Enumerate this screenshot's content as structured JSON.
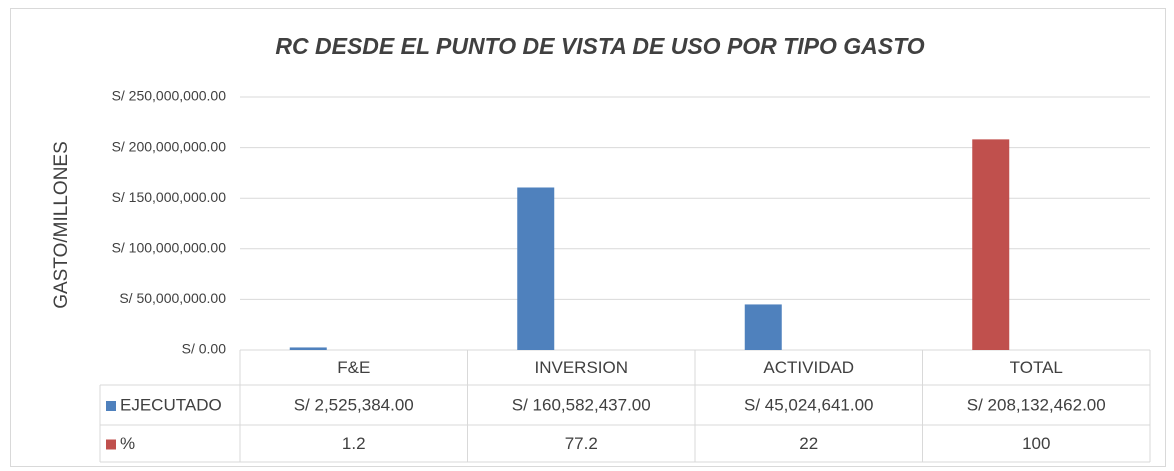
{
  "chart_data": {
    "type": "bar",
    "title": "RC DESDE EL PUNTO DE VISTA DE USO POR TIPO GASTO",
    "y_label": "GASTO/MILLONES",
    "categories": [
      "F&E",
      "INVERSION",
      "ACTIVIDAD",
      "TOTAL"
    ],
    "series": [
      {
        "name": "EJECUTADO",
        "color": "#4f81bd",
        "colors": [
          "#4f81bd",
          "#4f81bd",
          "#4f81bd",
          "#c0504d"
        ],
        "values": [
          2525384,
          160582437,
          45024641,
          208132462
        ],
        "value_labels": [
          "S/ 2,525,384.00",
          "S/ 160,582,437.00",
          "S/ 45,024,641.00",
          "S/ 208,132,462.00"
        ]
      },
      {
        "name": "%",
        "color": "#c0504d",
        "values": [
          1.2,
          77.2,
          22,
          100
        ]
      }
    ],
    "ylim": [
      0,
      250000000
    ],
    "yticks": [
      {
        "value": 0,
        "label": "S/ 0.00"
      },
      {
        "value": 50000000,
        "label": "S/ 50,000,000.00"
      },
      {
        "value": 100000000,
        "label": "S/ 100,000,000.00"
      },
      {
        "value": 150000000,
        "label": "S/ 150,000,000.00"
      },
      {
        "value": 200000000,
        "label": "S/ 200,000,000.00"
      },
      {
        "value": 250000000,
        "label": "S/ 250,000,000.00"
      }
    ],
    "grid": true
  }
}
